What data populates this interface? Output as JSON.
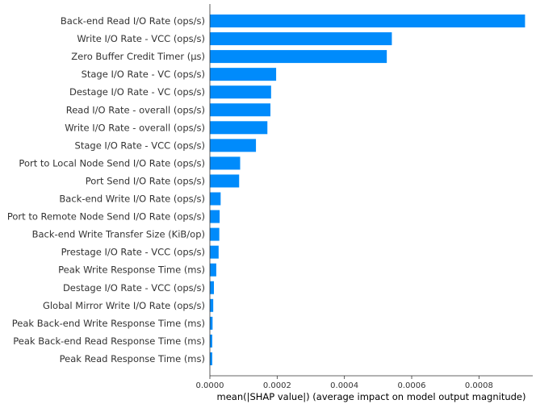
{
  "chart_data": {
    "type": "bar",
    "orientation": "horizontal",
    "title": "",
    "xlabel": "mean(|SHAP value|) (average impact on model output magnitude)",
    "ylabel": "",
    "xlim": [
      0,
      0.00096
    ],
    "x_ticks": [
      0,
      0.0002,
      0.0004,
      0.0006,
      0.0008
    ],
    "x_tick_labels": [
      "0.0000",
      "0.0002",
      "0.0004",
      "0.0006",
      "0.0008"
    ],
    "grid": false,
    "bar_color": "#008bfb",
    "categories": [
      "Back-end Read I/O Rate (ops/s)",
      "Write I/O Rate - VCC (ops/s)",
      "Zero Buffer Credit Timer (µs)",
      "Stage I/O Rate - VC (ops/s)",
      "Destage I/O Rate - VC (ops/s)",
      "Read I/O Rate - overall (ops/s)",
      "Write I/O Rate - overall (ops/s)",
      "Stage I/O Rate - VCC (ops/s)",
      "Port to Local Node Send I/O Rate (ops/s)",
      "Port Send I/O Rate (ops/s)",
      "Back-end Write I/O Rate (ops/s)",
      "Port to Remote Node Send I/O Rate (ops/s)",
      "Back-end Write Transfer Size (KiB/op)",
      "Prestage I/O Rate - VCC (ops/s)",
      "Peak Write Response Time (ms)",
      "Destage I/O Rate - VCC (ops/s)",
      "Global Mirror Write I/O Rate (ops/s)",
      "Peak Back-end Write Response Time (ms)",
      "Peak Back-end Read Response Time (ms)",
      "Peak Read Response Time (ms)"
    ],
    "values": [
      0.000937,
      0.000541,
      0.000526,
      0.000197,
      0.000182,
      0.00018,
      0.000171,
      0.000137,
      9e-05,
      8.7e-05,
      3.2e-05,
      2.9e-05,
      2.8e-05,
      2.6e-05,
      1.9e-05,
      1.2e-05,
      1e-05,
      8e-06,
      7e-06,
      7e-06
    ]
  }
}
